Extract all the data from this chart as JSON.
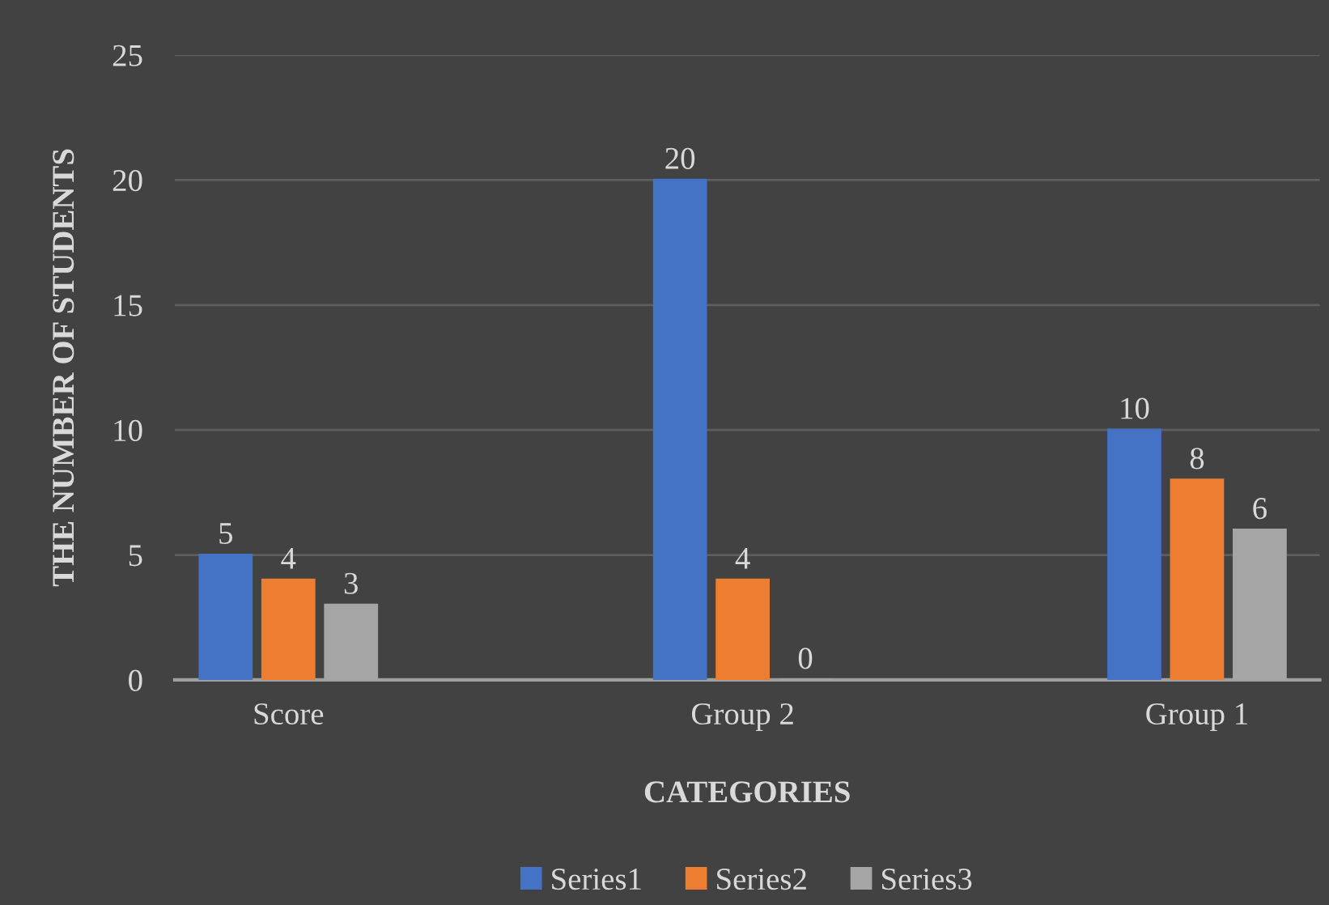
{
  "chart_data": {
    "type": "bar",
    "xlabel": "CATEGORIES",
    "ylabel": "THE NUMBER OF STUDENTS",
    "categories": [
      "Score",
      "Group 2",
      "Group 1"
    ],
    "series": [
      {
        "name": "Series1",
        "color": "#4472c4",
        "values": [
          5,
          20,
          10
        ]
      },
      {
        "name": "Series2",
        "color": "#ed7d31",
        "values": [
          4,
          4,
          8
        ]
      },
      {
        "name": "Series3",
        "color": "#a5a5a5",
        "values": [
          3,
          0,
          6
        ]
      }
    ],
    "ylim": [
      0,
      25
    ],
    "yticks": [
      0,
      5,
      10,
      15,
      20,
      25
    ],
    "grid": "y",
    "legend": "bottom",
    "data_labels": true
  }
}
